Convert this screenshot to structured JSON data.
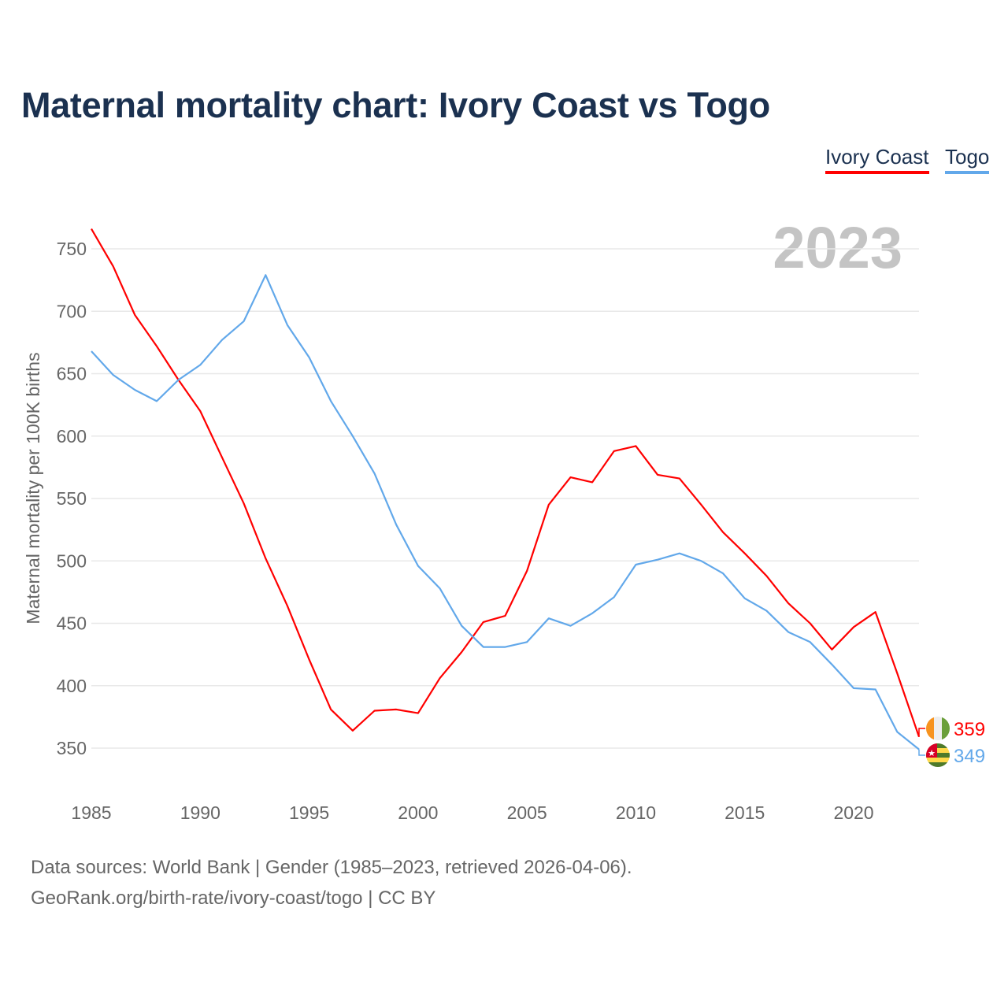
{
  "title": "Maternal mortality chart: Ivory Coast vs Togo",
  "legend": [
    {
      "label": "Ivory Coast",
      "color": "#ff0000"
    },
    {
      "label": "Togo",
      "color": "#62a8ea"
    }
  ],
  "footer": {
    "line1": "Data sources: World Bank | Gender (1985–2023, retrieved 2026-04-06).",
    "line2": "GeoRank.org/birth-rate/ivory-coast/togo | CC BY"
  },
  "chart_data": {
    "type": "line",
    "title": "Maternal mortality chart: Ivory Coast vs Togo",
    "ylabel": "Maternal mortality per 100K births",
    "xlabel": "",
    "year_watermark": "2023",
    "xlim": [
      1985,
      2023
    ],
    "ylim": [
      350,
      750
    ],
    "x_ticks": [
      1985,
      1990,
      1995,
      2000,
      2005,
      2010,
      2015,
      2020
    ],
    "y_ticks": [
      350,
      400,
      450,
      500,
      550,
      600,
      650,
      700,
      750
    ],
    "grid": true,
    "legend_position": "top-right",
    "x": [
      1985,
      1986,
      1987,
      1988,
      1989,
      1990,
      1991,
      1992,
      1993,
      1994,
      1995,
      1996,
      1997,
      1998,
      1999,
      2000,
      2001,
      2002,
      2003,
      2004,
      2005,
      2006,
      2007,
      2008,
      2009,
      2010,
      2011,
      2012,
      2013,
      2014,
      2015,
      2016,
      2017,
      2018,
      2019,
      2020,
      2021,
      2022,
      2023
    ],
    "series": [
      {
        "name": "Ivory Coast",
        "color": "#ff0000",
        "end_label": "359",
        "flag": "ivory-coast",
        "values": [
          766,
          736,
          697,
          672,
          645,
          620,
          583,
          546,
          502,
          464,
          421,
          381,
          364,
          380,
          381,
          378,
          406,
          427,
          451,
          456,
          492,
          545,
          567,
          563,
          588,
          592,
          569,
          566,
          545,
          523,
          506,
          488,
          466,
          450,
          429,
          447,
          459,
          410,
          359
        ]
      },
      {
        "name": "Togo",
        "color": "#62a8ea",
        "end_label": "349",
        "flag": "togo",
        "values": [
          668,
          649,
          637,
          628,
          645,
          657,
          677,
          692,
          729,
          689,
          663,
          628,
          600,
          570,
          529,
          496,
          478,
          448,
          431,
          431,
          435,
          454,
          448,
          458,
          471,
          497,
          501,
          506,
          500,
          490,
          470,
          460,
          443,
          435,
          417,
          398,
          397,
          363,
          349
        ]
      }
    ]
  }
}
